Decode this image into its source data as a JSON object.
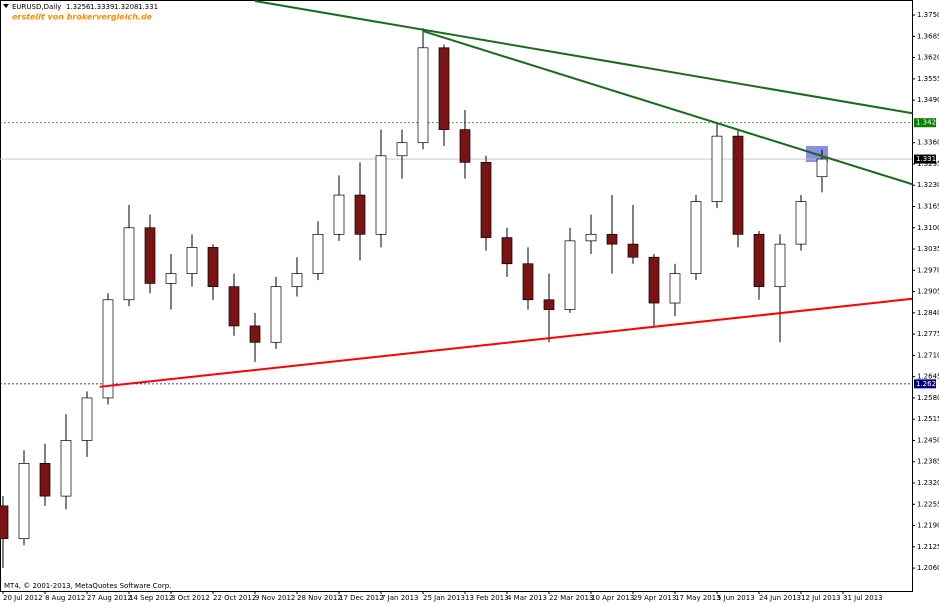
{
  "chart_data": {
    "type": "candlestick",
    "title": "EURUSD,Daily",
    "watermark": "erstellt von brokervergleich.de",
    "footer": "MT4, © 2001-2013, MetaQuotes Software Corp.",
    "categories": [
      "20 Jul 2012",
      null,
      "8 Aug 2012",
      null,
      "27 Aug 2012",
      null,
      "14 Sep 2012",
      null,
      "3 Oct 2012",
      null,
      "22 Oct 2012",
      null,
      "9 Nov 2012",
      null,
      "28 Nov 2012",
      null,
      "17 Dec 2012",
      null,
      "7 Jan 2013",
      null,
      "25 Jan 2013",
      null,
      "13 Feb 2013",
      null,
      "4 Mar 2013",
      null,
      "22 Mar 2013",
      null,
      "10 Apr 2013",
      null,
      "29 Apr 2013",
      null,
      "17 May 2013",
      null,
      "5 Jun 2013",
      null,
      "24 Jun 2013",
      null,
      "12 Jul 2013",
      null,
      "31 Jul 2013"
    ],
    "open": [
      1.225,
      1.215,
      1.238,
      1.228,
      1.245,
      1.258,
      1.288,
      1.31,
      1.293,
      1.296,
      1.304,
      1.292,
      1.28,
      1.275,
      1.292,
      1.296,
      1.308,
      1.32,
      1.308,
      1.332,
      1.336,
      1.365,
      1.34,
      1.33,
      1.307,
      1.299,
      1.288,
      1.285,
      1.306,
      1.308,
      1.305,
      1.301,
      1.287,
      1.296,
      1.318,
      1.338,
      1.308,
      1.292,
      1.305,
      1.3256,
      null
    ],
    "high": [
      1.228,
      1.242,
      1.244,
      1.253,
      1.26,
      1.29,
      1.317,
      1.314,
      1.302,
      1.308,
      1.305,
      1.296,
      1.284,
      1.295,
      1.301,
      1.312,
      1.326,
      1.33,
      1.34,
      1.34,
      1.371,
      1.366,
      1.346,
      1.332,
      1.31,
      1.304,
      1.296,
      1.31,
      1.314,
      1.32,
      1.317,
      1.302,
      1.299,
      1.32,
      1.342,
      1.34,
      1.309,
      1.308,
      1.32,
      1.3339,
      null
    ],
    "low": [
      1.206,
      1.213,
      1.225,
      1.224,
      1.24,
      1.256,
      1.286,
      1.29,
      1.285,
      1.292,
      1.288,
      1.277,
      1.269,
      1.273,
      1.289,
      1.294,
      1.306,
      1.3,
      1.304,
      1.325,
      1.334,
      1.335,
      1.325,
      1.303,
      1.295,
      1.285,
      1.275,
      1.284,
      1.302,
      1.296,
      1.299,
      1.28,
      1.283,
      1.294,
      1.316,
      1.304,
      1.288,
      1.275,
      1.303,
      1.3208,
      null
    ],
    "close": [
      1.215,
      1.238,
      1.228,
      1.245,
      1.258,
      1.288,
      1.31,
      1.293,
      1.296,
      1.304,
      1.292,
      1.28,
      1.275,
      1.292,
      1.296,
      1.308,
      1.32,
      1.308,
      1.332,
      1.336,
      1.365,
      1.34,
      1.33,
      1.307,
      1.299,
      1.288,
      1.285,
      1.306,
      1.308,
      1.305,
      1.301,
      1.287,
      1.296,
      1.318,
      1.338,
      1.308,
      1.292,
      1.305,
      1.318,
      1.331,
      null
    ],
    "ylim": [
      1.199,
      1.3793
    ],
    "yticks": [
      {
        "value": 1.375,
        "label": "1.3750"
      },
      {
        "value": 1.3685,
        "label": "1.3685"
      },
      {
        "value": 1.362,
        "label": "1.3620"
      },
      {
        "value": 1.3555,
        "label": "1.3555"
      },
      {
        "value": 1.349,
        "label": "1.3490"
      },
      {
        "value": 1.336,
        "label": "1.3360"
      },
      {
        "value": 1.3295,
        "label": "1.3295"
      },
      {
        "value": 1.323,
        "label": "1.3230"
      },
      {
        "value": 1.3165,
        "label": "1.3165"
      },
      {
        "value": 1.31,
        "label": "1.3100"
      },
      {
        "value": 1.3035,
        "label": "1.3035"
      },
      {
        "value": 1.297,
        "label": "1.2970"
      },
      {
        "value": 1.2905,
        "label": "1.2905"
      },
      {
        "value": 1.284,
        "label": "1.2840"
      },
      {
        "value": 1.2775,
        "label": "1.2775"
      },
      {
        "value": 1.271,
        "label": "1.2710"
      },
      {
        "value": 1.2645,
        "label": "1.2645"
      },
      {
        "value": 1.258,
        "label": "1.2580"
      },
      {
        "value": 1.2515,
        "label": "1.2515"
      },
      {
        "value": 1.245,
        "label": "1.2450"
      },
      {
        "value": 1.2385,
        "label": "1.2385"
      },
      {
        "value": 1.232,
        "label": "1.2320"
      },
      {
        "value": 1.2255,
        "label": "1.2255"
      },
      {
        "value": 1.219,
        "label": "1.2190"
      },
      {
        "value": 1.2125,
        "label": "1.2125"
      },
      {
        "value": 1.206,
        "label": "1.2060"
      }
    ],
    "levels": [
      {
        "value": 1.3421,
        "label": "1.3421",
        "color": "#008000",
        "dashed": true
      },
      {
        "value": 1.331,
        "label": "1.3310",
        "color": "#000000",
        "dashed": false
      },
      {
        "value": 1.2623,
        "label": "1.2623",
        "color": "#000080",
        "dashed": true
      }
    ],
    "trendlines": [
      {
        "x": [
          12,
          43.3
        ],
        "y": [
          1.3793,
          1.345
        ],
        "color": "#1a6b1a"
      },
      {
        "x": [
          20,
          43.3
        ],
        "y": [
          1.3701,
          1.3233
        ],
        "color": "#1a6b1a"
      },
      {
        "x": [
          4.6,
          43.3
        ],
        "y": [
          1.2614,
          1.2883
        ],
        "color": "#ff0000"
      }
    ],
    "bull_color": "#ffffff",
    "bear_color": "#7a1414"
  }
}
